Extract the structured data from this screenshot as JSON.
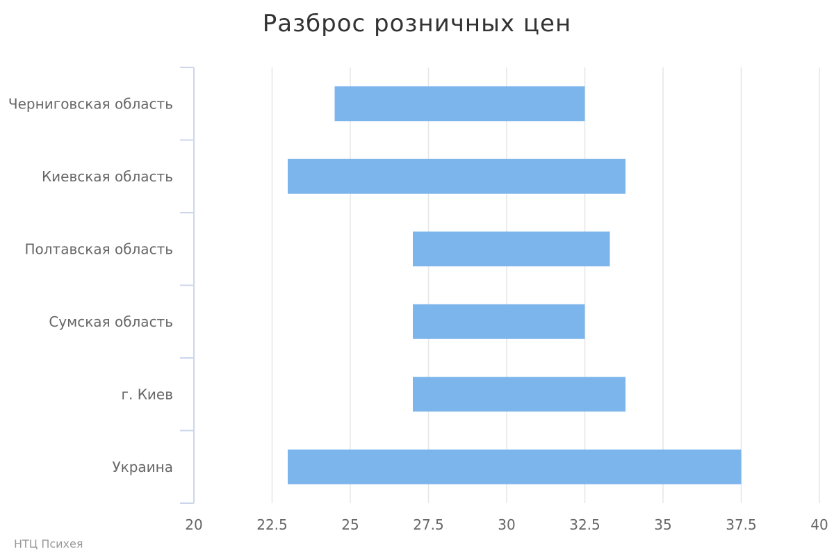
{
  "chart_data": {
    "type": "bar",
    "orientation": "horizontal",
    "title": "Разброс розничных цен",
    "categories": [
      "Черниговская область",
      "Киевская область",
      "Полтавская область",
      "Сумская область",
      "г. Киев",
      "Украина"
    ],
    "ranges": [
      [
        24.5,
        32.5
      ],
      [
        23.0,
        33.8
      ],
      [
        27.0,
        33.3
      ],
      [
        27.0,
        32.5
      ],
      [
        27.0,
        33.8
      ],
      [
        23.0,
        37.5
      ]
    ],
    "xlim": [
      20,
      40
    ],
    "x_ticks": [
      "20",
      "22.5",
      "25",
      "27.5",
      "30",
      "32.5",
      "35",
      "37.5",
      "40"
    ],
    "x_tick_values": [
      20,
      22.5,
      25,
      27.5,
      30,
      32.5,
      35,
      37.5,
      40
    ],
    "grid": true,
    "legend": "none",
    "bar_color": "#7cb5ec"
  },
  "credit": "НТЦ Психея"
}
